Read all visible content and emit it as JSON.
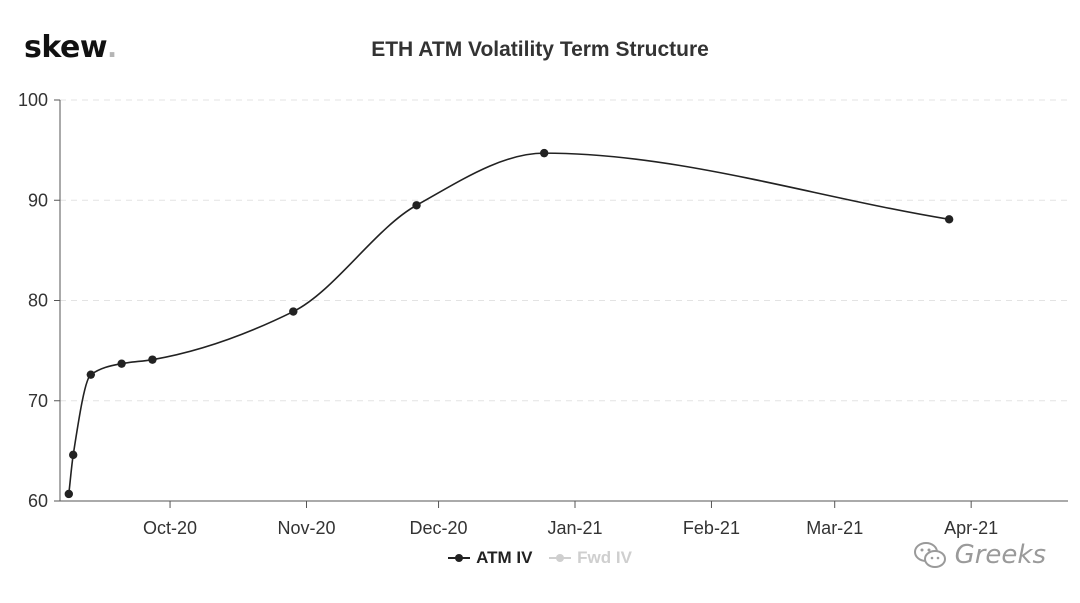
{
  "logo": {
    "text": "skew",
    "dot": "."
  },
  "chart_data": {
    "type": "line",
    "title": "ETH ATM Volatility Term Structure",
    "ylim": [
      60,
      100
    ],
    "yticks": [
      60,
      70,
      80,
      90,
      100
    ],
    "xlim": [
      "2020-09-06",
      "2021-04-23"
    ],
    "xticks": [
      {
        "date": "2020-10-01",
        "label": "Oct-20"
      },
      {
        "date": "2020-11-01",
        "label": "Nov-20"
      },
      {
        "date": "2020-12-01",
        "label": "Dec-20"
      },
      {
        "date": "2021-01-01",
        "label": "Jan-21"
      },
      {
        "date": "2021-02-01",
        "label": "Feb-21"
      },
      {
        "date": "2021-03-01",
        "label": "Mar-21"
      },
      {
        "date": "2021-04-01",
        "label": "Apr-21"
      }
    ],
    "grid": true,
    "legend": "bottom-center",
    "series": [
      {
        "name": "ATM IV",
        "color": "#222222",
        "points": [
          {
            "x": "2020-09-08",
            "y": 60.7
          },
          {
            "x": "2020-09-09",
            "y": 64.6
          },
          {
            "x": "2020-09-13",
            "y": 72.6
          },
          {
            "x": "2020-09-20",
            "y": 73.7
          },
          {
            "x": "2020-09-27",
            "y": 74.1
          },
          {
            "x": "2020-10-29",
            "y": 78.9
          },
          {
            "x": "2020-11-26",
            "y": 89.5
          },
          {
            "x": "2020-12-25",
            "y": 94.7
          },
          {
            "x": "2021-03-27",
            "y": 88.1
          }
        ]
      },
      {
        "name": "Fwd IV",
        "color": "#cfcfcf",
        "points": []
      }
    ]
  },
  "watermark": {
    "text": "Greeks"
  }
}
